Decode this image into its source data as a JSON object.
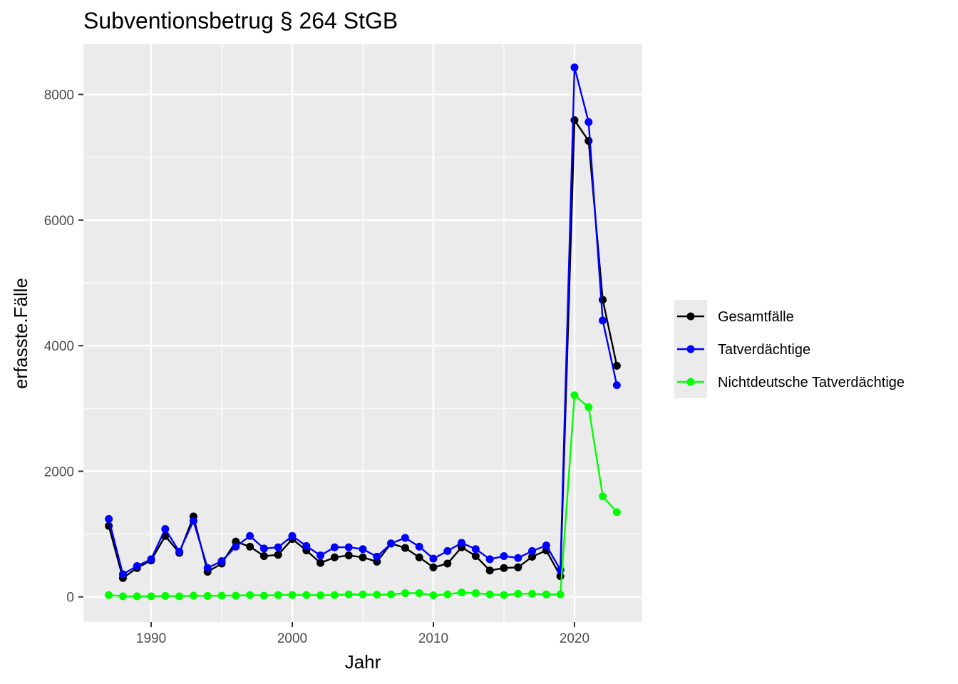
{
  "chart_data": {
    "type": "line",
    "title": "Subventionsbetrug § 264 StGB",
    "xlabel": "Jahr",
    "ylabel": "erfasste.Fälle",
    "xlim": [
      1985.2,
      2024.8
    ],
    "ylim": [
      -400,
      8800
    ],
    "x_ticks": [
      1990,
      2000,
      2010,
      2020
    ],
    "y_ticks": [
      0,
      2000,
      4000,
      6000,
      8000
    ],
    "grid": true,
    "legend_position": "right",
    "x": [
      1987,
      1988,
      1989,
      1990,
      1991,
      1992,
      1993,
      1994,
      1995,
      1996,
      1997,
      1998,
      1999,
      2000,
      2001,
      2002,
      2003,
      2004,
      2005,
      2006,
      2007,
      2008,
      2009,
      2010,
      2011,
      2012,
      2013,
      2014,
      2015,
      2016,
      2017,
      2018,
      2019,
      2020,
      2021,
      2022,
      2023
    ],
    "series": [
      {
        "name": "Gesamtfälle",
        "color": "#000000",
        "values": [
          1130,
          300,
          460,
          580,
          970,
          700,
          1280,
          400,
          530,
          880,
          800,
          650,
          670,
          920,
          740,
          540,
          630,
          660,
          630,
          560,
          850,
          780,
          630,
          470,
          530,
          790,
          650,
          420,
          460,
          470,
          640,
          740,
          330,
          7590,
          7260,
          4730,
          3680
        ]
      },
      {
        "name": "Tatverdächtige",
        "color": "#0000ff",
        "values": [
          1240,
          360,
          490,
          600,
          1080,
          720,
          1210,
          460,
          570,
          800,
          970,
          770,
          790,
          970,
          810,
          660,
          790,
          790,
          760,
          640,
          850,
          940,
          800,
          610,
          730,
          860,
          760,
          600,
          650,
          620,
          730,
          820,
          430,
          8430,
          7560,
          4400,
          3370
        ]
      },
      {
        "name": "Nichtdeutsche Tatverdächtige",
        "color": "#00ff00",
        "values": [
          30,
          10,
          10,
          10,
          15,
          10,
          20,
          15,
          20,
          20,
          30,
          20,
          30,
          30,
          30,
          25,
          30,
          40,
          40,
          35,
          40,
          60,
          60,
          25,
          40,
          70,
          60,
          40,
          30,
          50,
          50,
          40,
          40,
          3210,
          3020,
          1600,
          1350
        ]
      }
    ]
  }
}
